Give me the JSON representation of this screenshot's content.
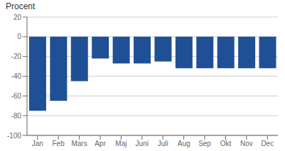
{
  "chart_data": {
    "type": "bar",
    "ylabel": "Procent",
    "categories": [
      "Jan",
      "Feb",
      "Mars",
      "Apr",
      "Maj",
      "Juni",
      "Juli",
      "Aug",
      "Sep",
      "Okt",
      "Nov",
      "Dec"
    ],
    "values": [
      -75,
      -65,
      -45,
      -22,
      -27,
      -27,
      -25,
      -32,
      -32,
      -32,
      -32,
      -32
    ],
    "color": "#1f5096",
    "ylim": [
      -100,
      20
    ],
    "yticks": [
      -100,
      -80,
      -60,
      -40,
      -20,
      0,
      20
    ],
    "grid": true
  }
}
